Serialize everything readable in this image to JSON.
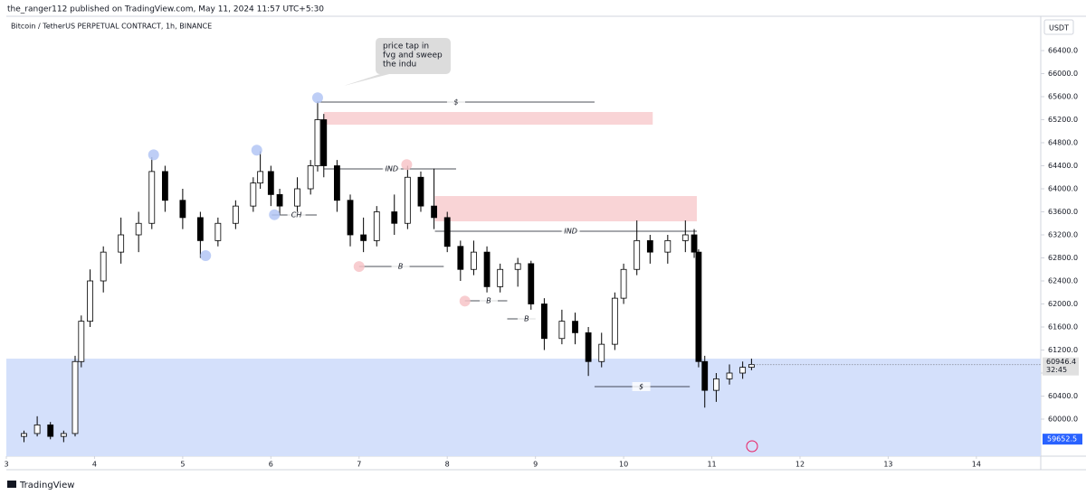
{
  "header": {
    "publisher": "the_ranger112 published on TradingView.com, May 11, 2024 11:57 UTC+5:30",
    "symbol": "Bitcoin / TetherUS PERPETUAL CONTRACT, 1h, BINANCE",
    "currency": "USDT",
    "brand": "TradingView"
  },
  "chart_data": {
    "type": "candlestick",
    "x": [
      3.2,
      3.35,
      3.5,
      3.65,
      3.78,
      3.85,
      3.95,
      4.1,
      4.3,
      4.5,
      4.65,
      4.8,
      5.0,
      5.2,
      5.4,
      5.6,
      5.8,
      5.88,
      6.0,
      6.1,
      6.3,
      6.45,
      6.53,
      6.6,
      6.75,
      6.9,
      7.05,
      7.2,
      7.4,
      7.55,
      7.7,
      7.85,
      8.0,
      8.15,
      8.3,
      8.45,
      8.6,
      8.8,
      8.95,
      9.1,
      9.3,
      9.45,
      9.6,
      9.75,
      9.9,
      10.0,
      10.15,
      10.3,
      10.5,
      10.7,
      10.8,
      10.85,
      10.92,
      11.05,
      11.2,
      11.35,
      11.45
    ],
    "open": [
      59700,
      59750,
      59900,
      59700,
      59750,
      61000,
      61700,
      62400,
      62900,
      63200,
      63400,
      64300,
      63800,
      63500,
      63100,
      63400,
      63700,
      64100,
      64300,
      63900,
      63700,
      64000,
      64400,
      65200,
      64400,
      63800,
      63200,
      63100,
      63600,
      63400,
      64200,
      63700,
      63500,
      63000,
      62600,
      62900,
      62300,
      62600,
      62700,
      62000,
      61400,
      61700,
      61500,
      61000,
      61300,
      62100,
      62600,
      63100,
      62900,
      63100,
      63200,
      62900,
      61000,
      60500,
      60700,
      60800,
      60900
    ],
    "high": [
      59800,
      60050,
      59950,
      59800,
      61100,
      61800,
      62600,
      63000,
      63500,
      63600,
      64550,
      64400,
      64000,
      63600,
      63500,
      63800,
      64200,
      64650,
      64400,
      64000,
      64200,
      64500,
      65500,
      65300,
      64500,
      63900,
      63500,
      63700,
      63900,
      64400,
      64300,
      64350,
      63600,
      63100,
      63100,
      63000,
      62700,
      62800,
      62750,
      62100,
      61900,
      61850,
      61600,
      61500,
      62200,
      62700,
      63450,
      63200,
      63200,
      63450,
      63300,
      62950,
      61100,
      60800,
      60950,
      61000,
      61050
    ],
    "low": [
      59600,
      59700,
      59650,
      59600,
      59700,
      60900,
      61600,
      62200,
      62700,
      62900,
      63300,
      63600,
      63300,
      62800,
      63000,
      63300,
      63600,
      64000,
      63700,
      63550,
      63600,
      63900,
      64300,
      64200,
      63600,
      63000,
      62900,
      63000,
      63200,
      63300,
      63600,
      63300,
      62900,
      62400,
      62500,
      62200,
      62200,
      62300,
      61900,
      61200,
      61300,
      61300,
      60750,
      60900,
      61200,
      62000,
      62500,
      62700,
      62700,
      62900,
      62800,
      60900,
      60200,
      60300,
      60600,
      60700,
      60850
    ],
    "close": [
      59750,
      59900,
      59700,
      59750,
      61000,
      61700,
      62400,
      62900,
      63200,
      63400,
      64300,
      63800,
      63500,
      63100,
      63400,
      63700,
      64100,
      64300,
      63900,
      63700,
      64000,
      64400,
      65200,
      64400,
      63800,
      63200,
      63100,
      63600,
      63400,
      64200,
      63700,
      63500,
      63000,
      62600,
      62900,
      62300,
      62600,
      62700,
      62000,
      61400,
      61700,
      61500,
      61000,
      61300,
      62100,
      62600,
      63100,
      62900,
      63100,
      63200,
      62900,
      61000,
      60500,
      60700,
      60800,
      60900,
      60946.4
    ],
    "up_color": "#ffffff",
    "down_color": "#000000",
    "xlim": [
      3,
      14.73
    ],
    "xticks": [
      3,
      4,
      5,
      6,
      7,
      8,
      9,
      10,
      11,
      12,
      13,
      14
    ],
    "ylim": [
      59357,
      66996
    ],
    "yticks": [
      {
        "value": 60000,
        "label": "60000.0"
      },
      {
        "value": 60400,
        "label": "60400.0"
      },
      {
        "value": 60800,
        "label": "60800.0"
      },
      {
        "value": 61200,
        "label": "61200.0"
      },
      {
        "value": 61600,
        "label": "61600.0"
      },
      {
        "value": 62000,
        "label": "62000.0"
      },
      {
        "value": 62400,
        "label": "62400.0"
      },
      {
        "value": 62800,
        "label": "62800.0"
      },
      {
        "value": 63200,
        "label": "63200.0"
      },
      {
        "value": 63600,
        "label": "63600.0"
      },
      {
        "value": 64000,
        "label": "64000.0"
      },
      {
        "value": 64400,
        "label": "64400.0"
      },
      {
        "value": 64800,
        "label": "64800.0"
      },
      {
        "value": 65200,
        "label": "65200.0"
      },
      {
        "value": 65600,
        "label": "65600.0"
      },
      {
        "value": 66000,
        "label": "66000.0"
      },
      {
        "value": 66400,
        "label": "66400.0"
      }
    ],
    "zones": [
      {
        "x0": 3,
        "x1": 14.73,
        "y0": 61050,
        "y1": 59357,
        "color": "#d4e0fb"
      },
      {
        "x0": 6.6,
        "x1": 10.33,
        "y0": 65333,
        "y1": 65114,
        "color": "#f9d4d6"
      },
      {
        "x0": 7.86,
        "x1": 10.83,
        "y0": 63874,
        "y1": 63435,
        "color": "#f9d4d6"
      }
    ],
    "levels": [
      {
        "label": "$",
        "y": 65506,
        "x0": 6.52,
        "x1": 9.67,
        "at": 8.1
      },
      {
        "label": "IND",
        "y": 64345,
        "x0": 6.6,
        "x1": 8.1,
        "at": 7.37
      },
      {
        "label": "CH",
        "y": 63545,
        "x0": 6.01,
        "x1": 6.52,
        "at": 6.29
      },
      {
        "label": "B",
        "y": 62651,
        "x0": 7.0,
        "x1": 7.96,
        "at": 7.47
      },
      {
        "label": "IND",
        "y": 63263,
        "x0": 7.86,
        "x1": 10.83,
        "at": 9.4
      },
      {
        "label": "B",
        "y": 62055,
        "x0": 8.2,
        "x1": 8.68,
        "at": 8.47
      },
      {
        "label": "B",
        "y": 61741,
        "x0": 8.68,
        "x1": 9.0,
        "at": 8.9
      },
      {
        "label": "$",
        "y": 60565,
        "x0": 9.67,
        "x1": 10.75,
        "at": 10.2
      }
    ],
    "markers": [
      {
        "x": 6.53,
        "y": 65580,
        "color": "#b3c6f4"
      },
      {
        "x": 4.67,
        "y": 64590,
        "color": "#b3c6f4"
      },
      {
        "x": 5.84,
        "y": 64670,
        "color": "#b3c6f4"
      },
      {
        "x": 6.04,
        "y": 63550,
        "color": "#b3c6f4"
      },
      {
        "x": 5.26,
        "y": 62840,
        "color": "#b3c6f4"
      },
      {
        "x": 7.54,
        "y": 64420,
        "color": "#f7c4c8"
      },
      {
        "x": 7.0,
        "y": 62650,
        "color": "#f7c4c8"
      },
      {
        "x": 8.2,
        "y": 62050,
        "color": "#f7c4c8"
      }
    ],
    "note": [
      "price tap in",
      "fvg and sweep",
      "the indu"
    ],
    "last_price": 60946.4,
    "countdown": "32:45",
    "zone_low": 59652.5
  }
}
